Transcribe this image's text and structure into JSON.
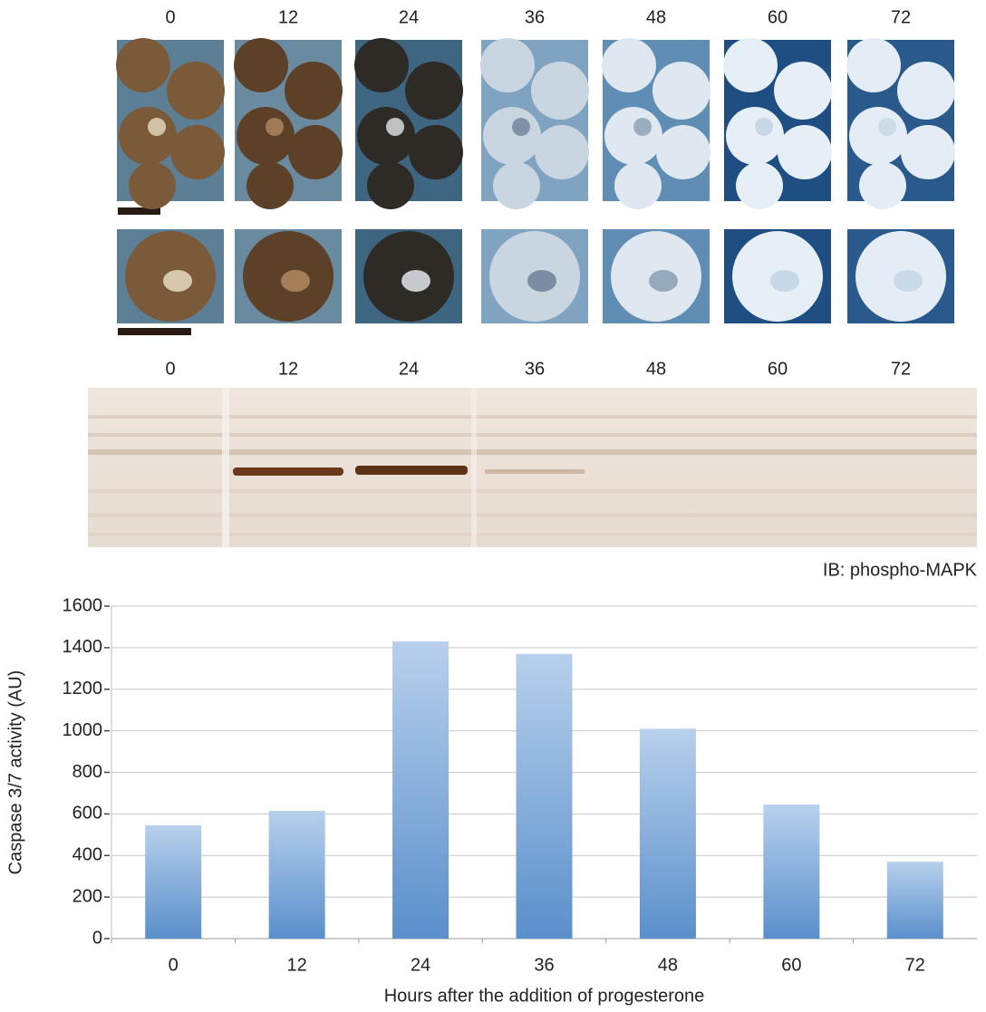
{
  "photo_panel": {
    "time_labels": [
      "0",
      "12",
      "24",
      "36",
      "48",
      "60",
      "72"
    ]
  },
  "blot_panel": {
    "time_labels": [
      "0",
      "12",
      "24",
      "36",
      "48",
      "60",
      "72"
    ],
    "caption": "IB: phospho-MAPK"
  },
  "chart_data": {
    "type": "bar",
    "categories": [
      "0",
      "12",
      "24",
      "36",
      "48",
      "60",
      "72"
    ],
    "values": [
      545,
      615,
      1430,
      1370,
      1010,
      645,
      370
    ],
    "color": "#5a8fcb",
    "x_label": "Hours after the addition of progesterone",
    "y_label": "Caspase 3/7 activity (AU)",
    "ylim": [
      0,
      1600
    ],
    "yticks": [
      0,
      200,
      400,
      600,
      800,
      1000,
      1200,
      1400,
      1600
    ],
    "grid": true
  }
}
